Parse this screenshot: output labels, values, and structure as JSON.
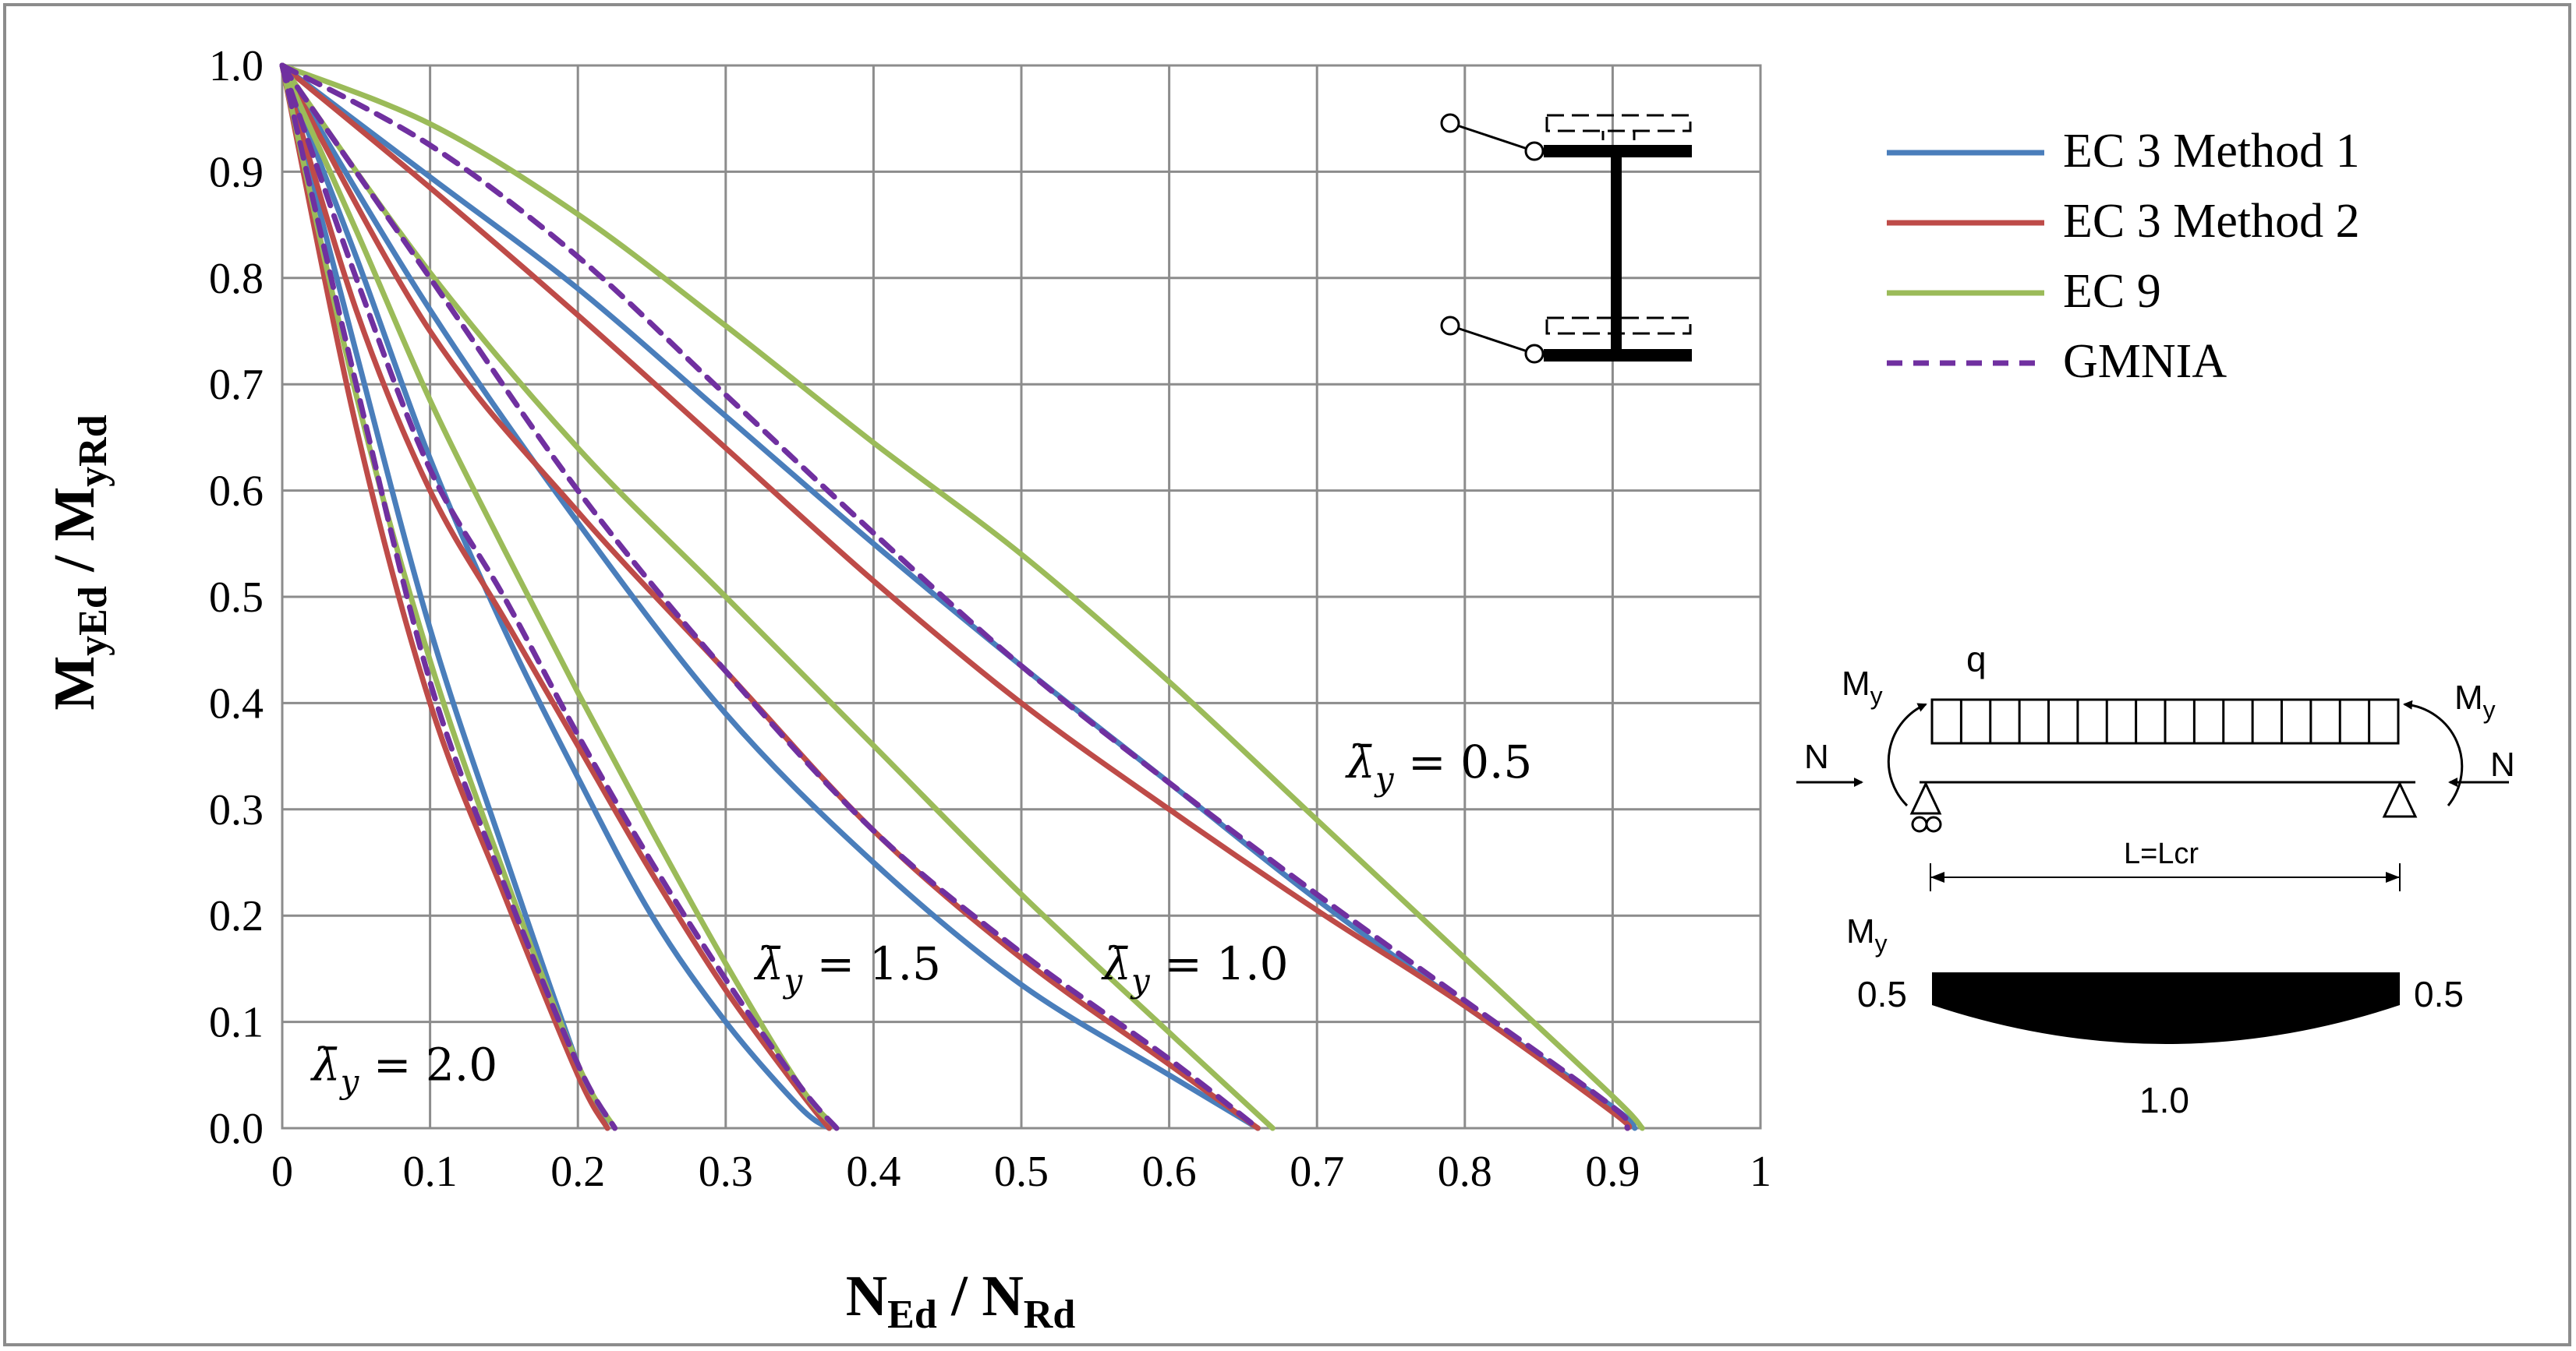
{
  "chart_data": {
    "type": "line",
    "xlabel": {
      "main": "N",
      "sub1": "Ed",
      "sep": " / N",
      "sub2": "Rd"
    },
    "ylabel": {
      "main": "M",
      "sub1": "yEd",
      "sep": " / M",
      "sub2": "yRd"
    },
    "xlim": [
      0,
      1
    ],
    "ylim": [
      0,
      1
    ],
    "x_ticks": [
      "0",
      "0.1",
      "0.2",
      "0.3",
      "0.4",
      "0.5",
      "0.6",
      "0.7",
      "0.8",
      "0.9",
      "1"
    ],
    "y_ticks": [
      "0.0",
      "0.1",
      "0.2",
      "0.3",
      "0.4",
      "0.5",
      "0.6",
      "0.7",
      "0.8",
      "0.9",
      "1.0"
    ],
    "grid": true,
    "legend_position": "right",
    "series": [
      {
        "name": "EC 3 Method 1",
        "color": "#4a7ebb",
        "dash": "solid",
        "curves": [
          {
            "slenderness": "0.5",
            "x": [
              0,
              0.1,
              0.2,
              0.3,
              0.4,
              0.5,
              0.6,
              0.7,
              0.8,
              0.9,
              0.915
            ],
            "y": [
              1.0,
              0.895,
              0.79,
              0.67,
              0.55,
              0.435,
              0.325,
              0.215,
              0.115,
              0.02,
              0.0
            ]
          },
          {
            "slenderness": "1.0",
            "x": [
              0,
              0.1,
              0.2,
              0.3,
              0.4,
              0.5,
              0.6,
              0.66
            ],
            "y": [
              1.0,
              0.77,
              0.57,
              0.39,
              0.25,
              0.135,
              0.05,
              0.0
            ]
          },
          {
            "slenderness": "1.5",
            "x": [
              0,
              0.05,
              0.1,
              0.15,
              0.2,
              0.25,
              0.3,
              0.35,
              0.37
            ],
            "y": [
              1.0,
              0.82,
              0.63,
              0.47,
              0.33,
              0.2,
              0.1,
              0.02,
              0.0
            ]
          },
          {
            "slenderness": "2.0",
            "x": [
              0,
              0.05,
              0.1,
              0.15,
              0.2,
              0.22
            ],
            "y": [
              1.0,
              0.73,
              0.47,
              0.26,
              0.06,
              0.0
            ]
          }
        ]
      },
      {
        "name": "EC 3 Method 2",
        "color": "#be4b48",
        "dash": "solid",
        "curves": [
          {
            "slenderness": "0.5",
            "x": [
              0,
              0.1,
              0.2,
              0.3,
              0.4,
              0.5,
              0.6,
              0.7,
              0.8,
              0.9,
              0.91
            ],
            "y": [
              1.0,
              0.885,
              0.765,
              0.64,
              0.515,
              0.4,
              0.3,
              0.205,
              0.115,
              0.015,
              0.0
            ]
          },
          {
            "slenderness": "1.0",
            "x": [
              0,
              0.1,
              0.2,
              0.3,
              0.4,
              0.5,
              0.6,
              0.66
            ],
            "y": [
              1.0,
              0.75,
              0.58,
              0.43,
              0.28,
              0.16,
              0.06,
              0.0
            ]
          },
          {
            "slenderness": "1.5",
            "x": [
              0,
              0.05,
              0.1,
              0.15,
              0.2,
              0.25,
              0.3,
              0.35,
              0.37
            ],
            "y": [
              1.0,
              0.77,
              0.6,
              0.48,
              0.36,
              0.24,
              0.13,
              0.035,
              0.0
            ]
          },
          {
            "slenderness": "2.0",
            "x": [
              0,
              0.05,
              0.1,
              0.15,
              0.2,
              0.22
            ],
            "y": [
              1.0,
              0.66,
              0.4,
              0.22,
              0.05,
              0.0
            ]
          }
        ]
      },
      {
        "name": "EC 9",
        "color": "#9bbb59",
        "dash": "solid",
        "curves": [
          {
            "slenderness": "0.5",
            "x": [
              0,
              0.1,
              0.2,
              0.3,
              0.4,
              0.5,
              0.6,
              0.7,
              0.8,
              0.9,
              0.92
            ],
            "y": [
              1.0,
              0.945,
              0.86,
              0.755,
              0.645,
              0.54,
              0.42,
              0.29,
              0.16,
              0.03,
              0.0
            ]
          },
          {
            "slenderness": "1.0",
            "x": [
              0,
              0.1,
              0.2,
              0.3,
              0.4,
              0.5,
              0.6,
              0.67
            ],
            "y": [
              1.0,
              0.805,
              0.64,
              0.5,
              0.36,
              0.22,
              0.09,
              0.0
            ]
          },
          {
            "slenderness": "1.5",
            "x": [
              0,
              0.05,
              0.1,
              0.15,
              0.2,
              0.25,
              0.3,
              0.35,
              0.375
            ],
            "y": [
              1.0,
              0.845,
              0.685,
              0.545,
              0.41,
              0.28,
              0.155,
              0.04,
              0.0
            ]
          },
          {
            "slenderness": "2.0",
            "x": [
              0,
              0.05,
              0.1,
              0.15,
              0.2,
              0.225
            ],
            "y": [
              1.0,
              0.69,
              0.44,
              0.24,
              0.06,
              0.0
            ]
          }
        ]
      },
      {
        "name": "GMNIA",
        "color": "#7030a0",
        "dash": "dashed",
        "curves": [
          {
            "slenderness": "0.5",
            "x": [
              0,
              0.1,
              0.2,
              0.3,
              0.4,
              0.5,
              0.6,
              0.7,
              0.8,
              0.9,
              0.91
            ],
            "y": [
              1.0,
              0.925,
              0.82,
              0.69,
              0.56,
              0.435,
              0.325,
              0.22,
              0.12,
              0.02,
              0.0
            ]
          },
          {
            "slenderness": "1.0",
            "x": [
              0,
              0.1,
              0.2,
              0.3,
              0.4,
              0.5,
              0.6,
              0.66
            ],
            "y": [
              1.0,
              0.8,
              0.6,
              0.43,
              0.28,
              0.165,
              0.065,
              0.0
            ]
          },
          {
            "slenderness": "1.5",
            "x": [
              0,
              0.05,
              0.1,
              0.15,
              0.2,
              0.25,
              0.3,
              0.35,
              0.375
            ],
            "y": [
              1.0,
              0.8,
              0.62,
              0.5,
              0.37,
              0.25,
              0.14,
              0.04,
              0.0
            ]
          },
          {
            "slenderness": "2.0",
            "x": [
              0,
              0.05,
              0.1,
              0.15,
              0.2,
              0.225
            ],
            "y": [
              1.0,
              0.7,
              0.42,
              0.23,
              0.06,
              0.0
            ]
          }
        ]
      }
    ],
    "annotations": [
      {
        "symbol": "λ̄",
        "sub": "y",
        "text": " = 0.5",
        "at": [
          0.72,
          0.33
        ]
      },
      {
        "symbol": "λ̄",
        "sub": "y",
        "text": " = 1.0",
        "at": [
          0.555,
          0.14
        ]
      },
      {
        "symbol": "λ̄",
        "sub": "y",
        "text": " = 1.5",
        "at": [
          0.32,
          0.14
        ]
      },
      {
        "symbol": "λ̄",
        "sub": "y",
        "text": " = 2.0",
        "at": [
          0.02,
          0.045
        ]
      }
    ]
  },
  "load_diagram": {
    "moment_symbol": "M",
    "moment_sub": "y",
    "load_label": "q",
    "axial_label": "N",
    "span_label": "L=Lcr",
    "diagram_title_main": "M",
    "diagram_title_sub": "y",
    "end_value_left": "0.5",
    "end_value_right": "0.5",
    "mid_value": "1.0"
  }
}
